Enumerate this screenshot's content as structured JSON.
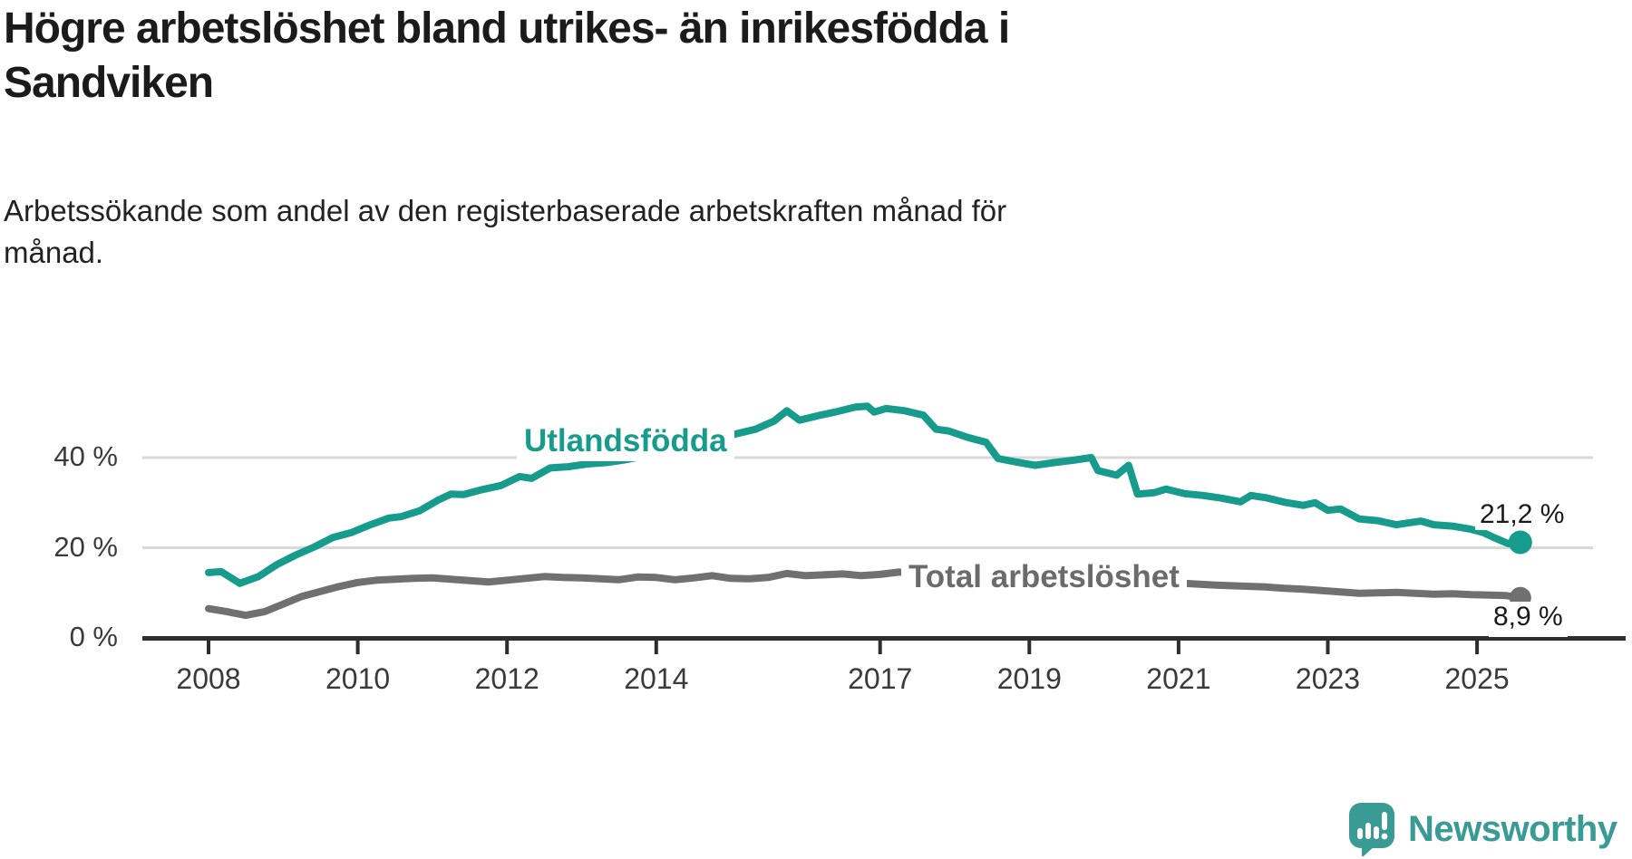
{
  "title": "Högre arbetslöshet bland utrikes- än inrikesfödda i\nSandviken",
  "subtitle": "Arbetssökande som andel av den registerbaserade arbetskraften månad för\nmånad.",
  "branding": {
    "name": "Newsworthy",
    "brand_color": "#3a9a94"
  },
  "colors": {
    "foreign_born": "#169b8d",
    "total": "#707070",
    "gridline": "#d9d9d9",
    "axis": "#2d2d2d",
    "text": "#1b1b1b"
  },
  "chart_data": {
    "type": "line",
    "title": "Högre arbetslöshet bland utrikes- än inrikesfödda i Sandviken",
    "subtitle": "Arbetssökande som andel av den registerbaserade arbetskraften månad för månad.",
    "unit": "%",
    "x_axis": {
      "ticks": [
        2008,
        2010,
        2012,
        2014,
        2017,
        2019,
        2021,
        2023,
        2025
      ],
      "tick_labels": [
        "2008",
        "2010",
        "2012",
        "2014",
        "2017",
        "2019",
        "2021",
        "2023",
        "2025"
      ],
      "range": [
        2008,
        2025.58
      ]
    },
    "y_axis": {
      "ticks": [
        0,
        20,
        40
      ],
      "tick_labels": [
        "0 %",
        "20 %",
        "40 %"
      ],
      "gridlines": [
        20,
        40
      ],
      "range": [
        0,
        55
      ]
    },
    "series": [
      {
        "name": "Utlandsfödda",
        "label": "Utlandsfödda",
        "color": "#169b8d",
        "end_label": "21,2 %",
        "end_value": 21.2,
        "points": [
          [
            2008.0,
            14.5
          ],
          [
            2008.17,
            14.7
          ],
          [
            2008.42,
            12.1
          ],
          [
            2008.67,
            13.6
          ],
          [
            2008.92,
            16.3
          ],
          [
            2009.17,
            18.4
          ],
          [
            2009.42,
            20.2
          ],
          [
            2009.67,
            22.3
          ],
          [
            2009.92,
            23.4
          ],
          [
            2010.17,
            25.1
          ],
          [
            2010.42,
            26.6
          ],
          [
            2010.58,
            26.9
          ],
          [
            2010.83,
            28.2
          ],
          [
            2011.08,
            30.6
          ],
          [
            2011.25,
            31.9
          ],
          [
            2011.42,
            31.8
          ],
          [
            2011.67,
            32.9
          ],
          [
            2011.92,
            33.8
          ],
          [
            2012.17,
            35.8
          ],
          [
            2012.33,
            35.4
          ],
          [
            2012.58,
            37.7
          ],
          [
            2012.83,
            38.0
          ],
          [
            2013.08,
            38.6
          ],
          [
            2013.33,
            38.9
          ],
          [
            2013.58,
            39.5
          ],
          [
            2013.83,
            40.3
          ],
          [
            2014.08,
            41.2
          ],
          [
            2014.33,
            42.1
          ],
          [
            2014.58,
            43.1
          ],
          [
            2014.83,
            44.2
          ],
          [
            2015.08,
            45.3
          ],
          [
            2015.33,
            46.3
          ],
          [
            2015.58,
            48.1
          ],
          [
            2015.75,
            50.4
          ],
          [
            2015.92,
            48.3
          ],
          [
            2016.17,
            49.3
          ],
          [
            2016.42,
            50.2
          ],
          [
            2016.67,
            51.2
          ],
          [
            2016.83,
            51.4
          ],
          [
            2016.92,
            50.1
          ],
          [
            2017.08,
            50.9
          ],
          [
            2017.33,
            50.4
          ],
          [
            2017.58,
            49.4
          ],
          [
            2017.75,
            46.3
          ],
          [
            2017.92,
            45.9
          ],
          [
            2018.17,
            44.5
          ],
          [
            2018.42,
            43.4
          ],
          [
            2018.58,
            39.8
          ],
          [
            2018.83,
            39.0
          ],
          [
            2019.08,
            38.3
          ],
          [
            2019.33,
            38.9
          ],
          [
            2019.58,
            39.4
          ],
          [
            2019.83,
            40.0
          ],
          [
            2019.92,
            37.1
          ],
          [
            2020.17,
            36.1
          ],
          [
            2020.33,
            38.3
          ],
          [
            2020.45,
            31.9
          ],
          [
            2020.67,
            32.2
          ],
          [
            2020.83,
            33.0
          ],
          [
            2021.08,
            32.0
          ],
          [
            2021.33,
            31.6
          ],
          [
            2021.58,
            31.0
          ],
          [
            2021.83,
            30.2
          ],
          [
            2021.97,
            31.6
          ],
          [
            2022.17,
            31.1
          ],
          [
            2022.42,
            30.1
          ],
          [
            2022.67,
            29.4
          ],
          [
            2022.83,
            30.0
          ],
          [
            2023.0,
            28.3
          ],
          [
            2023.17,
            28.6
          ],
          [
            2023.42,
            26.4
          ],
          [
            2023.67,
            26.0
          ],
          [
            2023.92,
            25.1
          ],
          [
            2024.08,
            25.5
          ],
          [
            2024.25,
            25.9
          ],
          [
            2024.42,
            25.1
          ],
          [
            2024.67,
            24.8
          ],
          [
            2024.92,
            24.1
          ],
          [
            2025.08,
            23.4
          ],
          [
            2025.25,
            22.1
          ],
          [
            2025.42,
            20.9
          ],
          [
            2025.58,
            21.2
          ]
        ]
      },
      {
        "name": "Total arbetslöshet",
        "label": "Total arbetslöshet",
        "color": "#707070",
        "end_label": "8,9 %",
        "end_value": 8.9,
        "points": [
          [
            2008.0,
            6.5
          ],
          [
            2008.25,
            5.8
          ],
          [
            2008.5,
            5.0
          ],
          [
            2008.75,
            5.8
          ],
          [
            2009.0,
            7.5
          ],
          [
            2009.25,
            9.2
          ],
          [
            2009.5,
            10.3
          ],
          [
            2009.75,
            11.4
          ],
          [
            2010.0,
            12.3
          ],
          [
            2010.25,
            12.8
          ],
          [
            2010.5,
            13.0
          ],
          [
            2010.75,
            13.2
          ],
          [
            2011.0,
            13.3
          ],
          [
            2011.25,
            13.0
          ],
          [
            2011.5,
            12.7
          ],
          [
            2011.75,
            12.4
          ],
          [
            2012.0,
            12.8
          ],
          [
            2012.25,
            13.2
          ],
          [
            2012.5,
            13.6
          ],
          [
            2012.75,
            13.4
          ],
          [
            2013.0,
            13.3
          ],
          [
            2013.25,
            13.1
          ],
          [
            2013.5,
            12.9
          ],
          [
            2013.75,
            13.5
          ],
          [
            2014.0,
            13.4
          ],
          [
            2014.25,
            12.9
          ],
          [
            2014.5,
            13.3
          ],
          [
            2014.75,
            13.8
          ],
          [
            2015.0,
            13.2
          ],
          [
            2015.25,
            13.1
          ],
          [
            2015.5,
            13.4
          ],
          [
            2015.75,
            14.3
          ],
          [
            2016.0,
            13.8
          ],
          [
            2016.25,
            14.0
          ],
          [
            2016.5,
            14.2
          ],
          [
            2016.75,
            13.8
          ],
          [
            2017.0,
            14.1
          ],
          [
            2017.25,
            14.6
          ],
          [
            2017.5,
            14.4
          ],
          [
            2017.75,
            14.1
          ],
          [
            2018.0,
            13.7
          ],
          [
            2018.33,
            13.3
          ],
          [
            2018.67,
            12.9
          ],
          [
            2019.0,
            12.5
          ],
          [
            2019.33,
            12.2
          ],
          [
            2019.67,
            12.0
          ],
          [
            2019.92,
            11.9
          ],
          [
            2020.25,
            12.7
          ],
          [
            2020.5,
            12.7
          ],
          [
            2020.83,
            12.4
          ],
          [
            2021.17,
            12.0
          ],
          [
            2021.5,
            11.7
          ],
          [
            2021.83,
            11.5
          ],
          [
            2022.17,
            11.3
          ],
          [
            2022.42,
            11.0
          ],
          [
            2022.67,
            10.8
          ],
          [
            2022.92,
            10.5
          ],
          [
            2023.17,
            10.2
          ],
          [
            2023.42,
            9.9
          ],
          [
            2023.67,
            10.0
          ],
          [
            2023.92,
            10.1
          ],
          [
            2024.17,
            9.9
          ],
          [
            2024.42,
            9.7
          ],
          [
            2024.67,
            9.8
          ],
          [
            2024.92,
            9.6
          ],
          [
            2025.17,
            9.5
          ],
          [
            2025.38,
            9.4
          ],
          [
            2025.58,
            8.9
          ]
        ]
      }
    ],
    "legend_position": "inline-labels",
    "grid": "horizontal-only"
  }
}
